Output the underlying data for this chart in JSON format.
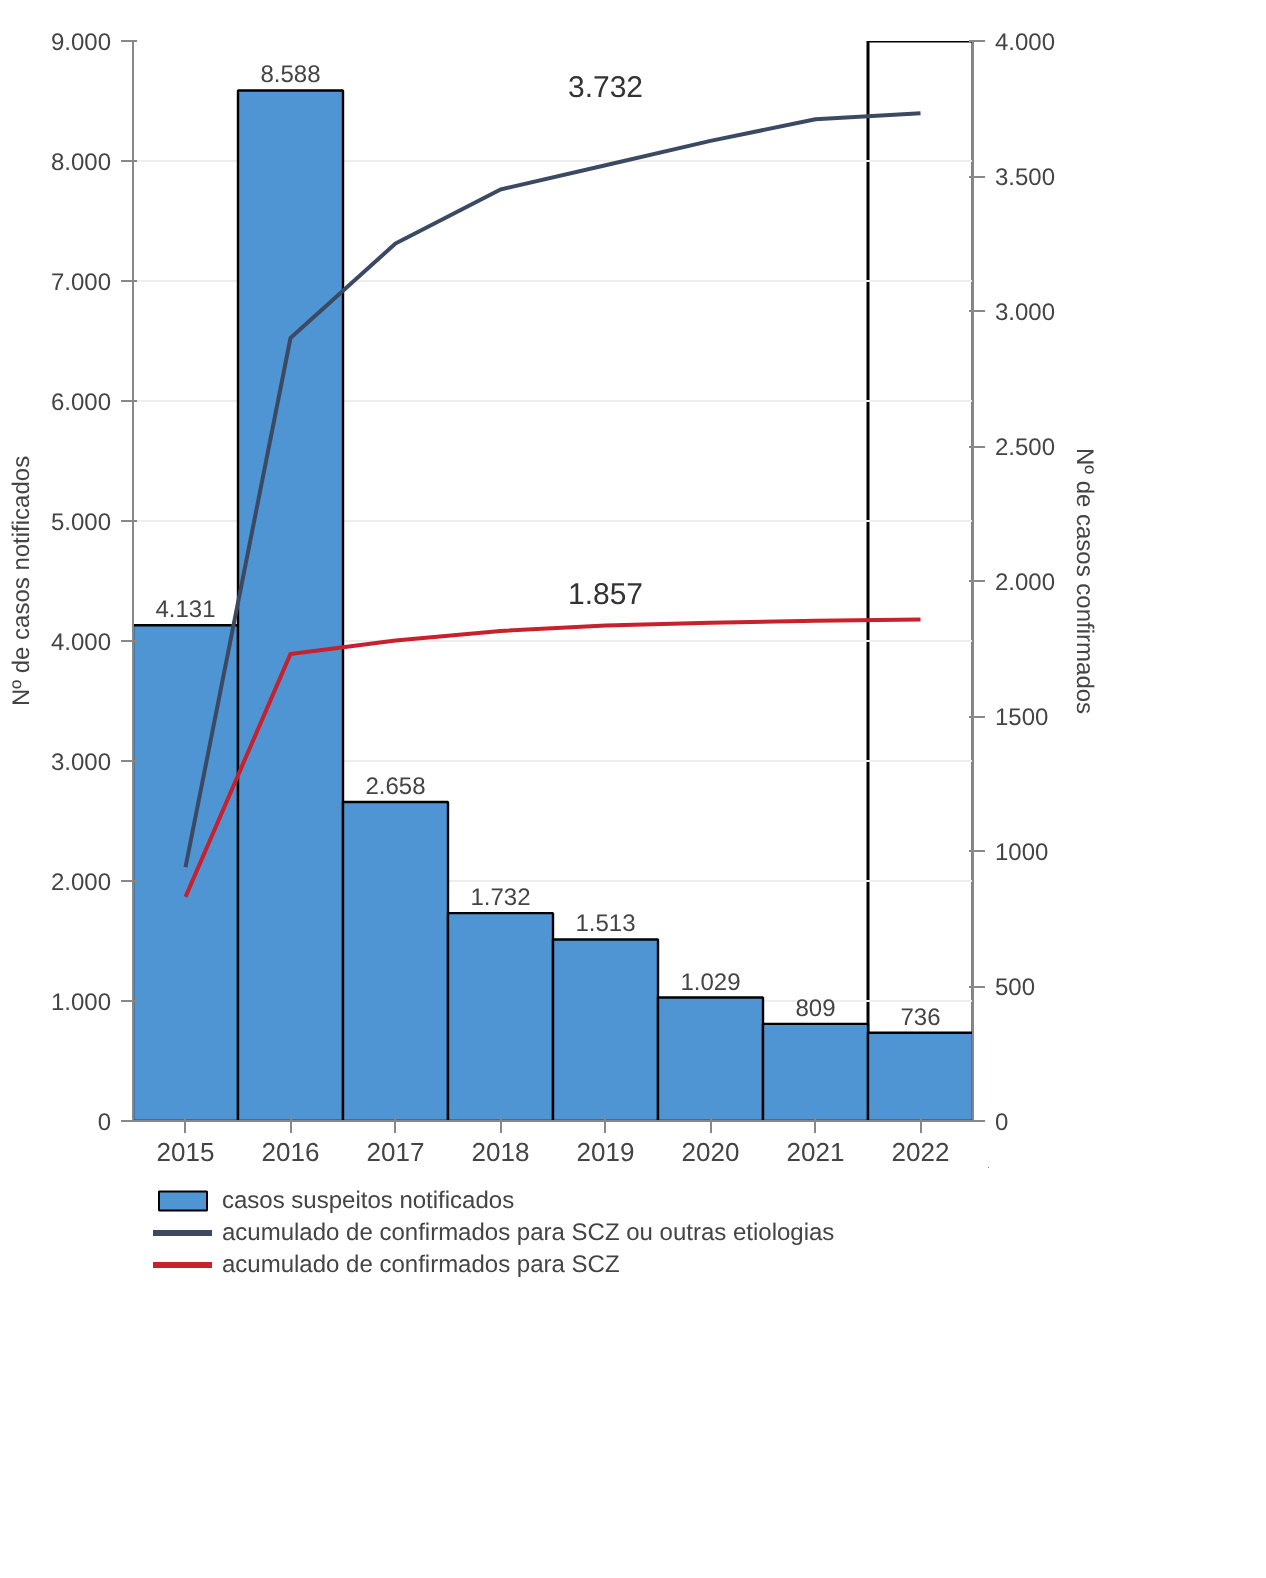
{
  "chart_data": {
    "type": "bar",
    "categories": [
      "2015",
      "2016",
      "2017",
      "2018",
      "2019",
      "2020",
      "2021",
      "2022"
    ],
    "ylabel": "Nº de casos notificados",
    "y2label": "Nº de casos confirmados",
    "series": [
      {
        "name": "casos suspeitos notificados",
        "color": "#5095d3",
        "values": [
          4131,
          8588,
          2658,
          1732,
          1513,
          1029,
          809,
          736
        ],
        "value_labels": [
          "4.131",
          "8.588",
          "2.658",
          "1.732",
          "1.513",
          "1.029",
          "809",
          "736"
        ]
      },
      {
        "name": "acumulado de confirmados para SCZ ou outras etiologias",
        "type": "line",
        "axis": "y2",
        "color": "#3b4a62",
        "values": [
          940,
          2900,
          3250,
          3450,
          3540,
          3630,
          3710,
          3732
        ]
      },
      {
        "name": "acumulado de confirmados para SCZ",
        "type": "line",
        "axis": "y2",
        "color": "#c8202c",
        "values": [
          830,
          1730,
          1780,
          1815,
          1835,
          1845,
          1853,
          1857
        ]
      }
    ],
    "annotations": [
      "3.732",
      "1.857"
    ],
    "bands": [
      {
        "axis": "x",
        "from": "2022",
        "to": "2022",
        "color": "#ffffff"
      }
    ],
    "ylim": [
      0,
      9000
    ],
    "yticks": [
      0,
      {
        "value": 1000,
        "label": "1.000"
      },
      {
        "value": 2000,
        "label": "2.000"
      },
      {
        "value": 3000,
        "label": "3.000"
      },
      {
        "value": 4000,
        "label": "4.000"
      },
      {
        "value": 5000,
        "label": "5.000"
      },
      {
        "value": 6000,
        "label": "6.000"
      },
      {
        "value": 7000,
        "label": "7.000"
      },
      {
        "value": 8000,
        "label": "8.000"
      },
      {
        "value": 9000,
        "label": "9.000"
      }
    ],
    "y2lim": [
      0,
      4000
    ],
    "y2ticks": [
      0,
      500,
      1000,
      1500,
      {
        "value": 2000,
        "label": "2.000"
      },
      {
        "value": 2500,
        "label": "2.500"
      },
      {
        "value": 3000,
        "label": "3.000"
      },
      {
        "value": 3500,
        "label": "3.500"
      },
      {
        "value": 4000,
        "label": "4.000"
      }
    ],
    "grid": "y",
    "legend": "bottom"
  }
}
